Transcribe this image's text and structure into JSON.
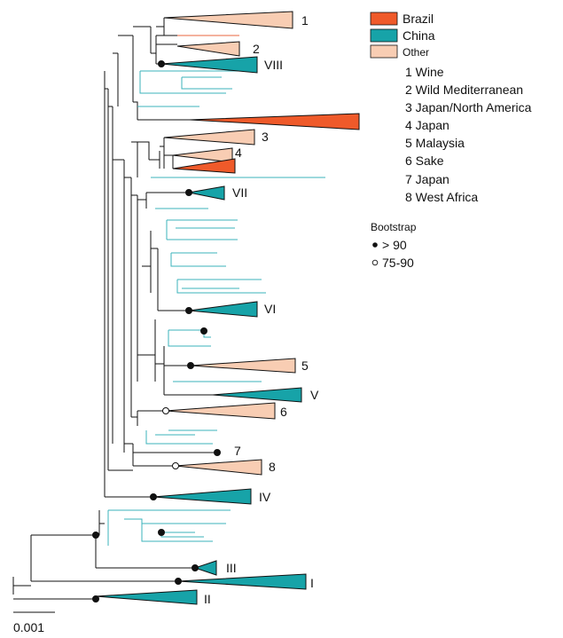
{
  "colors": {
    "brazil": "#ef5a2a",
    "china": "#17a3a8",
    "other": "#f8cdb3",
    "branch": "#111111",
    "china_branch": "#3bb3bb",
    "brazil_branch": "#e8643c"
  },
  "legend": {
    "categories": [
      {
        "label": "Brazil",
        "color_key": "brazil"
      },
      {
        "label": "China",
        "color_key": "china"
      },
      {
        "label": "Other",
        "color_key": "other"
      }
    ],
    "groups": [
      "1 Wine",
      "2 Wild Mediterranean",
      "3 Japan/North America",
      "4 Japan",
      "5 Malaysia",
      "6 Sake",
      "7 Japan",
      "8 West Africa"
    ],
    "bootstrap_title": "Bootstrap",
    "bootstrap_items": [
      {
        "symbol": "filled",
        "label": "> 90"
      },
      {
        "symbol": "open",
        "label": "75-90"
      }
    ]
  },
  "clade_labels": {
    "c1": "1",
    "c2": "2",
    "c3": "3",
    "c4": "4",
    "c5": "5",
    "c6": "6",
    "c7": "7",
    "c8": "8",
    "I": "I",
    "II": "II",
    "III": "III",
    "IV": "IV",
    "V": "V",
    "VI": "VI",
    "VII": "VII",
    "VIII": "VIII"
  },
  "scale_bar": {
    "label": "0.001"
  }
}
